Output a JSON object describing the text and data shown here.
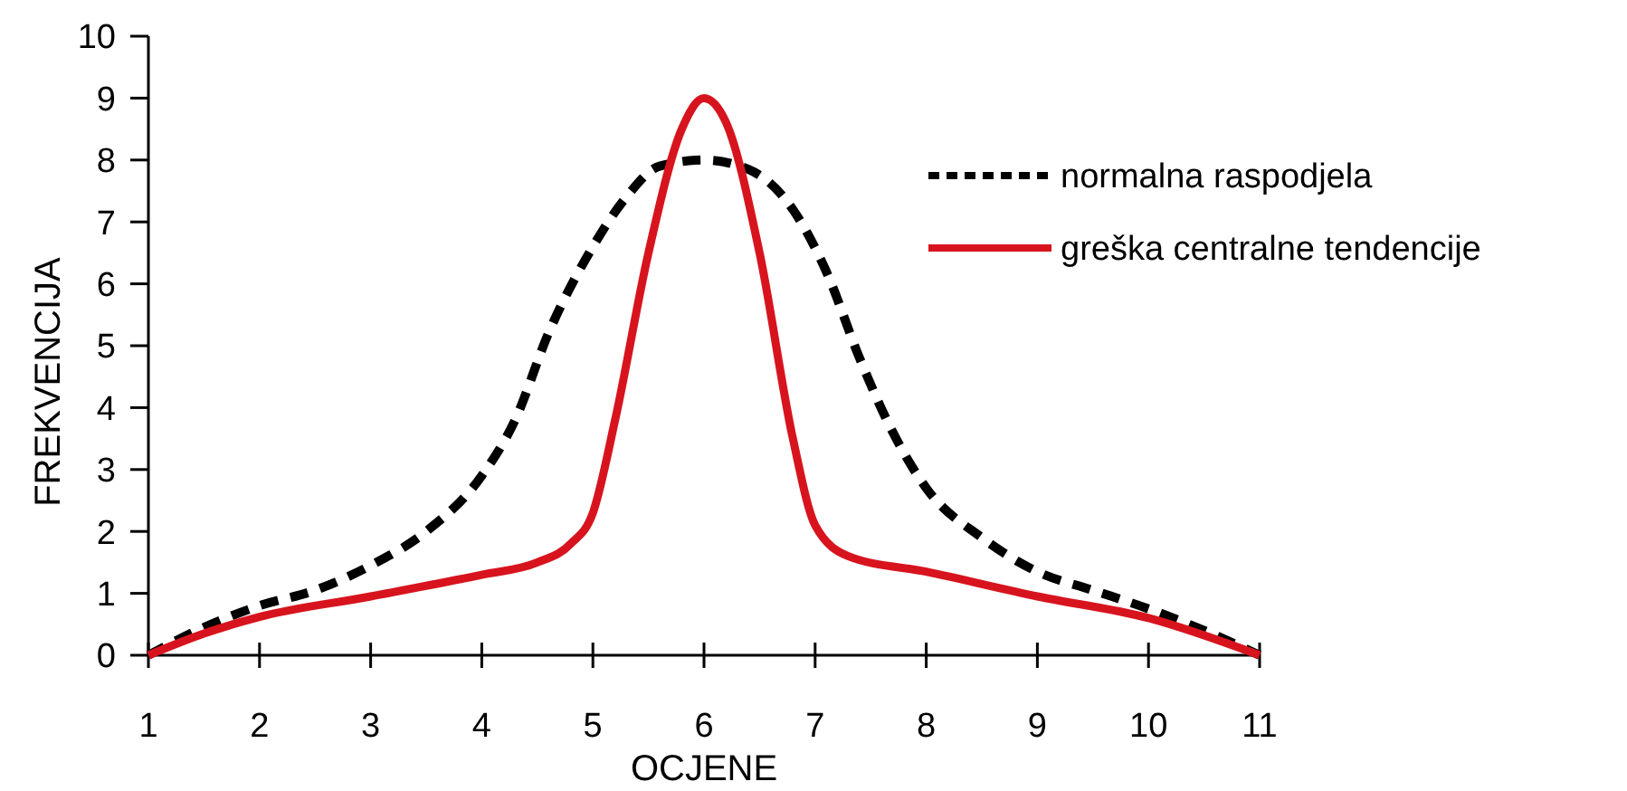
{
  "chart_data": {
    "type": "line",
    "xlabel": "OCJENE",
    "ylabel": "FREKVENCIJA",
    "xlim": [
      1,
      11
    ],
    "xticks": [
      1,
      2,
      3,
      4,
      5,
      6,
      7,
      8,
      9,
      10,
      11
    ],
    "ylim": [
      0,
      10
    ],
    "yticks": [
      0,
      1,
      2,
      3,
      4,
      5,
      6,
      7,
      8,
      9,
      10
    ],
    "legend": "top right",
    "grid": false,
    "marker": "none",
    "series": [
      {
        "name": "normalna raspodjela",
        "color": "#000000",
        "line_style": "dashed",
        "x": [
          1,
          1.5,
          2,
          2.5,
          3,
          3.5,
          4,
          4.3,
          4.6,
          5,
          5.3,
          5.6,
          6,
          6.4,
          6.8,
          7.1,
          7.4,
          7.7,
          8,
          8.5,
          9,
          9.5,
          10,
          10.5,
          11
        ],
        "values": [
          0,
          0.45,
          0.8,
          1.05,
          1.45,
          2,
          2.9,
          3.8,
          5.2,
          6.6,
          7.4,
          7.9,
          8,
          7.85,
          7.2,
          6.2,
          4.8,
          3.6,
          2.7,
          1.9,
          1.35,
          1.05,
          0.75,
          0.4,
          0
        ]
      },
      {
        "name": "greška centralne tendencije",
        "color": "#d7141e",
        "line_style": "solid",
        "x": [
          1,
          1.5,
          2,
          3,
          4,
          4.5,
          4.8,
          5,
          5.2,
          5.5,
          5.8,
          6,
          6.2,
          6.5,
          6.8,
          7,
          7.3,
          8,
          9,
          10,
          11
        ],
        "values": [
          0,
          0.35,
          0.62,
          0.95,
          1.3,
          1.5,
          1.8,
          2.3,
          3.8,
          6.5,
          8.5,
          9,
          8.6,
          6.5,
          3.5,
          2.1,
          1.6,
          1.35,
          0.95,
          0.6,
          0
        ]
      }
    ]
  }
}
